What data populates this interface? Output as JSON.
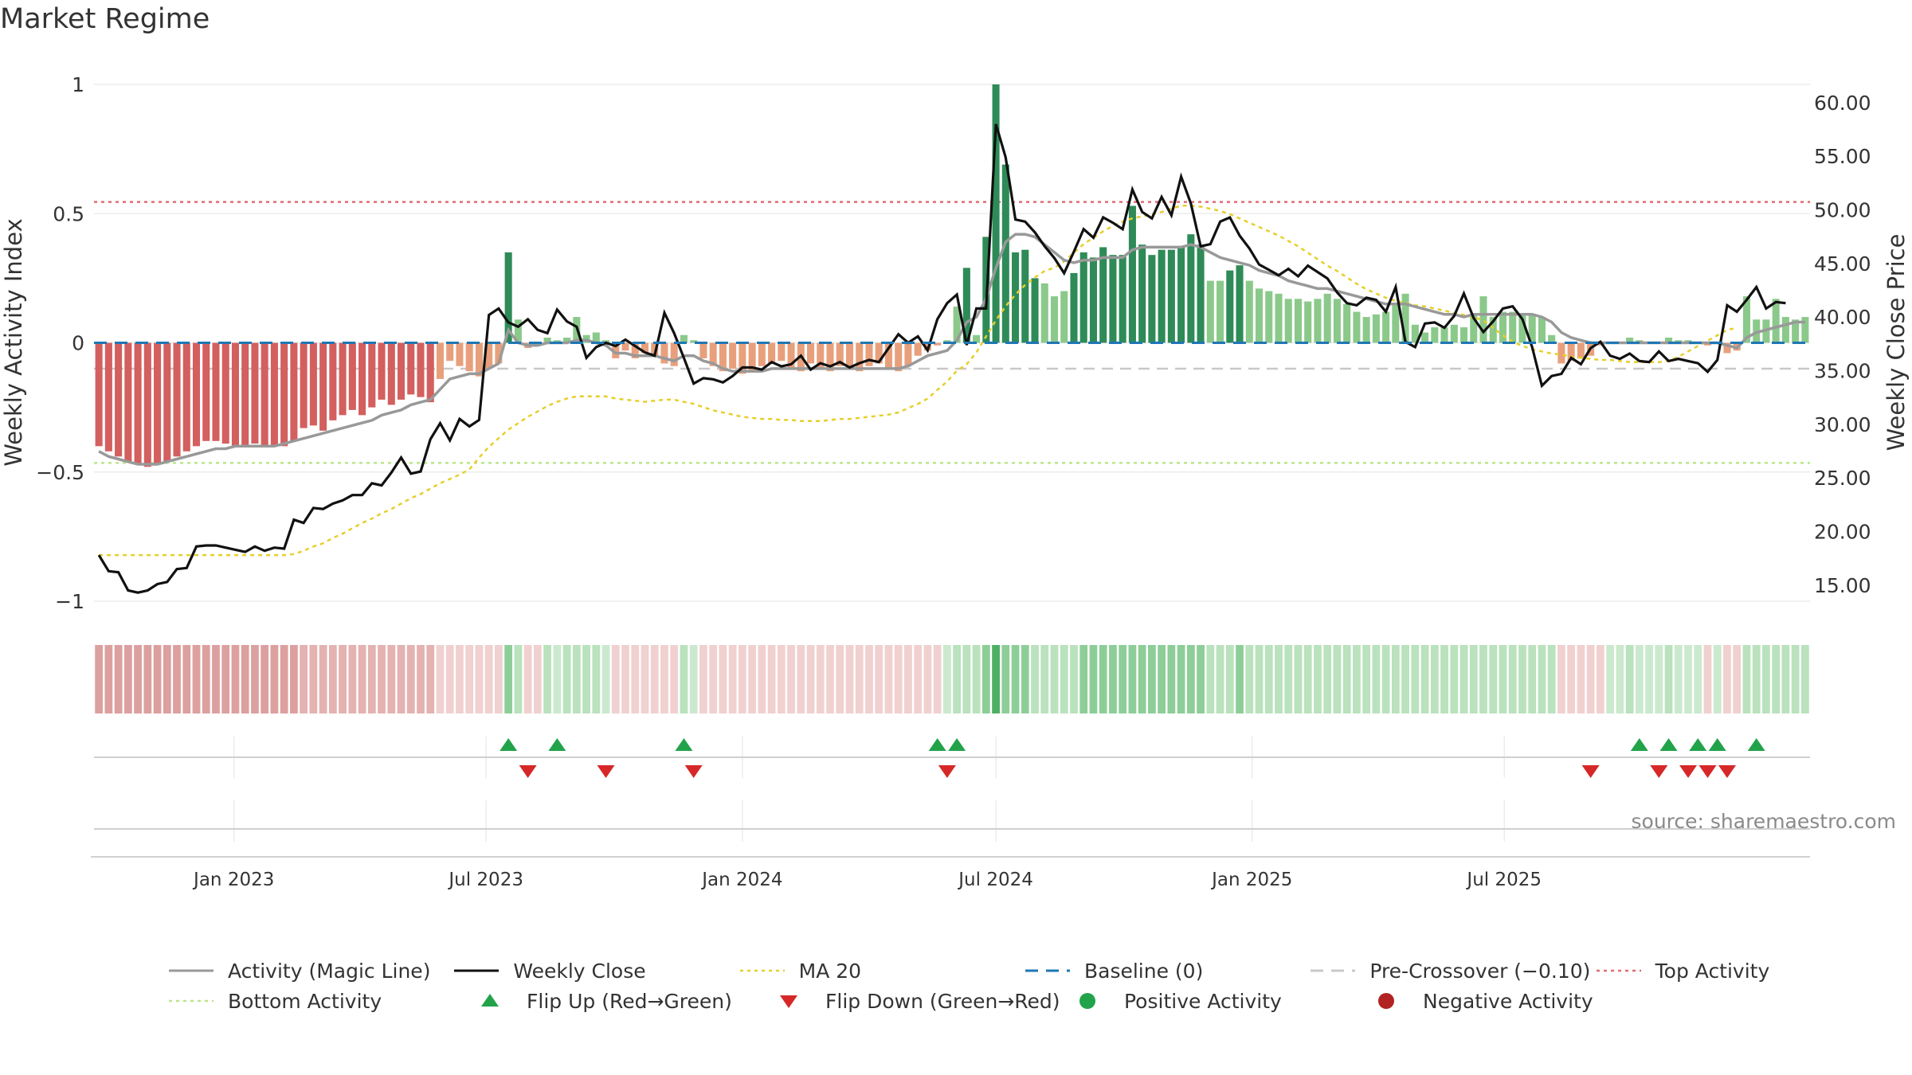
{
  "title": "Market Regime",
  "source": "source: sharemaestro.com",
  "colors": {
    "magic": "#999999",
    "close": "#111111",
    "ma": "#e6cf2a",
    "baseline": "#1f77b4",
    "pre": "#c8c8c8",
    "top": "#e06c75",
    "bottom": "#b8e68a",
    "flip_up": "#22a34a",
    "flip_down": "#d62828",
    "pos": "#22a34a",
    "neg": "#b22222"
  },
  "chart_data": {
    "type": "bar",
    "x_start": "2022-09-26",
    "x_freq": "weekly",
    "x_ticks": [
      "Jan 2023",
      "Jul 2023",
      "Jan 2024",
      "Jul 2024",
      "Jan 2025",
      "Jul 2025"
    ],
    "x_tick_dates": [
      "2023-01-01",
      "2023-07-01",
      "2024-01-01",
      "2024-07-01",
      "2025-01-01",
      "2025-07-01"
    ],
    "y_left": {
      "label": "Weekly Activity Index",
      "ticks": [
        "1",
        "0.5",
        "0",
        "−0.5",
        "−1"
      ],
      "lim": [
        -1,
        1
      ]
    },
    "y_right": {
      "label": "Weekly Close Price",
      "ticks": [
        "60.00",
        "55.00",
        "50.00",
        "45.00",
        "40.00",
        "35.00",
        "30.00",
        "25.00",
        "20.00",
        "15.00"
      ],
      "lim": [
        13.5,
        61.7
      ]
    },
    "reference_lines": {
      "baseline": 0,
      "pre_crossover": -0.1,
      "top_activity": 0.545,
      "bottom_activity": -0.465
    },
    "activity": [
      -0.4,
      -0.42,
      -0.44,
      -0.46,
      -0.47,
      -0.48,
      -0.47,
      -0.46,
      -0.44,
      -0.42,
      -0.4,
      -0.38,
      -0.38,
      -0.39,
      -0.4,
      -0.4,
      -0.39,
      -0.4,
      -0.4,
      -0.4,
      -0.38,
      -0.33,
      -0.32,
      -0.34,
      -0.3,
      -0.28,
      -0.26,
      -0.28,
      -0.25,
      -0.22,
      -0.24,
      -0.22,
      -0.2,
      -0.21,
      -0.23,
      -0.14,
      -0.07,
      -0.09,
      -0.11,
      -0.13,
      -0.1,
      -0.08,
      0.35,
      0.09,
      -0.02,
      -0.01,
      0.02,
      0.01,
      0.02,
      0.1,
      0.03,
      0.04,
      0.01,
      -0.06,
      -0.03,
      -0.06,
      -0.04,
      -0.05,
      -0.08,
      -0.09,
      0.03,
      0.01,
      -0.06,
      -0.09,
      -0.11,
      -0.1,
      -0.12,
      -0.11,
      -0.09,
      -0.08,
      -0.07,
      -0.1,
      -0.11,
      -0.08,
      -0.1,
      -0.11,
      -0.09,
      -0.1,
      -0.11,
      -0.09,
      -0.08,
      -0.1,
      -0.11,
      -0.09,
      -0.05,
      -0.03,
      -0.01,
      0.01,
      0.14,
      0.29,
      0.03,
      0.41,
      1.0,
      0.69,
      0.35,
      0.36,
      0.25,
      0.23,
      0.18,
      0.2,
      0.27,
      0.35,
      0.33,
      0.37,
      0.34,
      0.34,
      0.53,
      0.38,
      0.34,
      0.36,
      0.36,
      0.37,
      0.42,
      0.38,
      0.24,
      0.24,
      0.28,
      0.3,
      0.24,
      0.21,
      0.2,
      0.19,
      0.17,
      0.17,
      0.16,
      0.17,
      0.19,
      0.17,
      0.15,
      0.12,
      0.1,
      0.11,
      0.12,
      0.15,
      0.19,
      0.07,
      0.04,
      0.06,
      0.06,
      0.07,
      0.06,
      0.11,
      0.18,
      0.1,
      0.12,
      0.12,
      0.11,
      0.11,
      0.1,
      0.03,
      -0.08,
      -0.07,
      -0.06,
      -0.05,
      -0.01,
      0.0,
      0.0,
      0.02,
      0.01,
      0.0,
      0.0,
      0.02,
      0.01,
      0.01,
      0.0,
      -0.01,
      0.0,
      -0.04,
      -0.03,
      0.18,
      0.09,
      0.09,
      0.17,
      0.1,
      0.09,
      0.1
    ],
    "weekly_close": [
      17.8,
      16.3,
      16.2,
      14.5,
      14.3,
      14.5,
      15.1,
      15.3,
      16.5,
      16.6,
      18.6,
      18.7,
      18.7,
      18.5,
      18.3,
      18.1,
      18.6,
      18.2,
      18.5,
      18.4,
      21.1,
      20.8,
      22.2,
      22.1,
      22.6,
      22.9,
      23.4,
      23.4,
      24.5,
      24.3,
      25.5,
      26.9,
      25.4,
      25.6,
      28.6,
      30.1,
      28.5,
      30.5,
      29.8,
      30.4,
      40.2,
      40.8,
      39.5,
      39.1,
      39.8,
      38.8,
      38.5,
      40.7,
      39.6,
      39.1,
      36.2,
      37.2,
      37.6,
      37.3,
      37.9,
      37.3,
      36.7,
      36.4,
      40.4,
      38.5,
      36.2,
      33.8,
      34.3,
      34.2,
      33.9,
      34.5,
      35.3,
      35.3,
      35.1,
      35.8,
      35.4,
      35.6,
      36.4,
      35.1,
      35.7,
      35.4,
      35.8,
      35.3,
      35.7,
      36.0,
      35.8,
      37.1,
      38.4,
      37.6,
      38.2,
      36.9,
      39.8,
      41.3,
      42.1,
      37.4,
      40.8,
      40.8,
      58.0,
      54.9,
      49.1,
      48.9,
      47.9,
      46.6,
      45.5,
      44.1,
      46.1,
      48.2,
      47.4,
      49.3,
      48.8,
      48.2,
      51.9,
      49.8,
      49.2,
      51.2,
      49.5,
      53.1,
      50.6,
      46.6,
      46.8,
      48.9,
      49.3,
      47.6,
      46.4,
      44.9,
      44.4,
      43.9,
      44.5,
      43.8,
      44.8,
      44.2,
      43.6,
      42.3,
      41.3,
      41.1,
      41.8,
      41.6,
      40.5,
      42.8,
      37.7,
      37.2,
      39.4,
      39.5,
      39.0,
      40.1,
      42.2,
      39.9,
      38.6,
      39.6,
      40.8,
      41.0,
      39.8,
      37.2,
      33.6,
      34.5,
      34.7,
      36.2,
      35.6,
      37.1,
      37.7,
      36.4,
      36.1,
      36.6,
      35.9,
      35.8,
      36.8,
      35.9,
      36.1,
      35.9,
      35.7,
      34.9,
      36.0,
      41.1,
      40.5,
      41.6,
      42.8,
      40.8,
      41.4,
      41.3
    ],
    "activity_magic_line": [
      -0.42,
      -0.44,
      -0.45,
      -0.46,
      -0.47,
      -0.47,
      -0.47,
      -0.46,
      -0.45,
      -0.44,
      -0.43,
      -0.42,
      -0.41,
      -0.41,
      -0.4,
      -0.4,
      -0.4,
      -0.4,
      -0.4,
      -0.39,
      -0.38,
      -0.37,
      -0.36,
      -0.35,
      -0.34,
      -0.33,
      -0.32,
      -0.31,
      -0.3,
      -0.28,
      -0.27,
      -0.26,
      -0.24,
      -0.23,
      -0.22,
      -0.18,
      -0.14,
      -0.13,
      -0.12,
      -0.12,
      -0.1,
      -0.08,
      0.05,
      0.0,
      -0.01,
      -0.01,
      0.0,
      0.0,
      0.0,
      0.01,
      0.01,
      0.0,
      -0.01,
      -0.04,
      -0.04,
      -0.05,
      -0.05,
      -0.05,
      -0.06,
      -0.07,
      -0.05,
      -0.05,
      -0.07,
      -0.08,
      -0.1,
      -0.11,
      -0.11,
      -0.11,
      -0.11,
      -0.1,
      -0.1,
      -0.1,
      -0.1,
      -0.1,
      -0.1,
      -0.1,
      -0.1,
      -0.1,
      -0.1,
      -0.1,
      -0.1,
      -0.1,
      -0.1,
      -0.09,
      -0.07,
      -0.05,
      -0.04,
      -0.03,
      0.01,
      0.08,
      0.1,
      0.17,
      0.29,
      0.39,
      0.42,
      0.42,
      0.41,
      0.38,
      0.35,
      0.32,
      0.31,
      0.32,
      0.32,
      0.33,
      0.33,
      0.33,
      0.36,
      0.37,
      0.37,
      0.37,
      0.37,
      0.37,
      0.38,
      0.37,
      0.35,
      0.33,
      0.32,
      0.31,
      0.3,
      0.28,
      0.27,
      0.26,
      0.24,
      0.23,
      0.22,
      0.21,
      0.21,
      0.2,
      0.19,
      0.18,
      0.17,
      0.16,
      0.15,
      0.15,
      0.15,
      0.14,
      0.13,
      0.12,
      0.11,
      0.11,
      0.1,
      0.11,
      0.11,
      0.11,
      0.11,
      0.11,
      0.11,
      0.11,
      0.1,
      0.08,
      0.04,
      0.02,
      0.01,
      0.0,
      0.0,
      0.0,
      0.0,
      0.0,
      0.0,
      0.0,
      0.0,
      0.0,
      0.0,
      0.0,
      0.0,
      0.0,
      0.0,
      -0.01,
      -0.02,
      0.02,
      0.04,
      0.05,
      0.06,
      0.07,
      0.08,
      0.08
    ],
    "ma20": [
      17.8,
      17.8,
      17.8,
      17.8,
      17.8,
      17.8,
      17.8,
      17.8,
      17.8,
      17.8,
      17.8,
      17.8,
      17.8,
      17.8,
      17.8,
      17.8,
      17.8,
      17.8,
      17.8,
      17.8,
      17.9,
      18.2,
      18.6,
      18.9,
      19.4,
      19.8,
      20.3,
      20.8,
      21.2,
      21.7,
      22.1,
      22.6,
      23.1,
      23.5,
      24.0,
      24.5,
      24.9,
      25.3,
      25.8,
      26.9,
      27.9,
      28.7,
      29.5,
      30.1,
      30.7,
      31.2,
      31.7,
      32.1,
      32.4,
      32.6,
      32.6,
      32.6,
      32.6,
      32.4,
      32.3,
      32.2,
      32.1,
      32.2,
      32.3,
      32.3,
      32.1,
      31.9,
      31.6,
      31.3,
      31.1,
      30.9,
      30.7,
      30.6,
      30.5,
      30.5,
      30.4,
      30.4,
      30.3,
      30.3,
      30.3,
      30.4,
      30.5,
      30.5,
      30.6,
      30.7,
      30.8,
      30.9,
      31.1,
      31.5,
      31.9,
      32.4,
      33.2,
      34.0,
      35.0,
      35.6,
      36.7,
      38.2,
      39.7,
      41.0,
      42.1,
      43.0,
      43.7,
      44.3,
      44.6,
      45.2,
      46.0,
      46.8,
      47.4,
      48.0,
      48.5,
      48.9,
      49.2,
      49.4,
      49.6,
      49.8,
      50.1,
      50.4,
      50.4,
      50.3,
      50.1,
      49.9,
      49.6,
      49.2,
      48.8,
      48.4,
      48.0,
      47.6,
      47.1,
      46.6,
      46.0,
      45.4,
      44.8,
      44.3,
      43.7,
      43.1,
      42.6,
      42.2,
      41.8,
      41.5,
      41.3,
      41.1,
      41.0,
      40.8,
      40.6,
      40.4,
      40.2,
      40.0,
      39.7,
      39.0,
      38.3,
      37.7,
      37.3,
      37.0,
      36.8,
      36.6,
      36.5,
      36.3,
      36.2,
      36.1,
      36.0,
      36.0,
      35.9,
      35.8,
      35.8,
      35.8,
      35.8,
      35.9,
      36.3,
      36.8,
      37.3,
      37.8,
      38.3,
      38.8,
      39.0
    ],
    "flip_up_weeks": [
      42,
      47,
      60,
      86,
      88,
      158,
      161,
      164,
      166,
      170
    ],
    "flip_down_weeks": [
      44,
      52,
      61,
      87,
      153,
      160,
      163,
      165,
      167
    ]
  },
  "legend": [
    {
      "key": "magic",
      "label": "Activity (Magic Line)",
      "icon": "solid-line"
    },
    {
      "key": "close",
      "label": "Weekly Close",
      "icon": "solid-line"
    },
    {
      "key": "ma",
      "label": "MA 20",
      "icon": "dotted-line"
    },
    {
      "key": "baseline",
      "label": "Baseline (0)",
      "icon": "dashed-line"
    },
    {
      "key": "pre",
      "label": "Pre-Crossover (−0.10)",
      "icon": "dashed-line"
    },
    {
      "key": "top",
      "label": "Top Activity",
      "icon": "dotted-line"
    },
    {
      "key": "bottom",
      "label": "Bottom Activity",
      "icon": "dotted-line"
    },
    {
      "key": "flip_up",
      "label": "Flip Up (Red→Green)",
      "icon": "triangle-up"
    },
    {
      "key": "flip_down",
      "label": "Flip Down (Green→Red)",
      "icon": "triangle-down"
    },
    {
      "key": "pos",
      "label": "Positive Activity",
      "icon": "circle"
    },
    {
      "key": "neg",
      "label": "Negative Activity",
      "icon": "circle"
    }
  ]
}
